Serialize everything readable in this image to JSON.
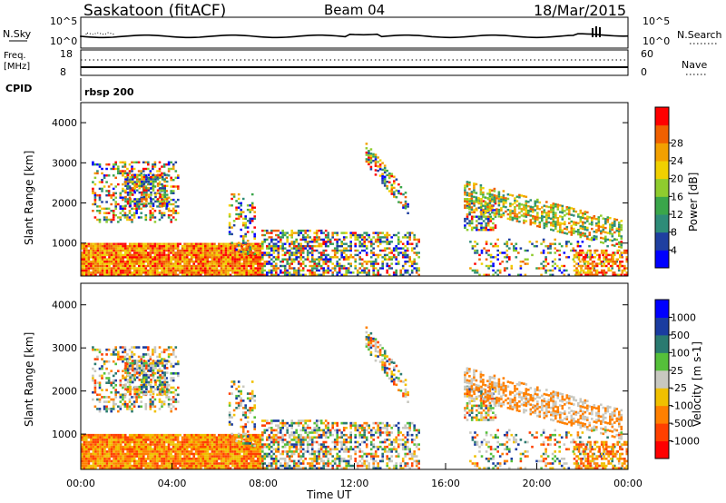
{
  "header": {
    "station": "Saskatoon (fitACF)",
    "beam": "Beam 04",
    "date": "18/Mar/2015"
  },
  "noise_panel": {
    "left_label": "N.Sky",
    "right_label": "N.Search",
    "left_ticks": [
      "10^5",
      "10^0"
    ],
    "right_ticks": [
      "10^5",
      "10^0"
    ],
    "legend_line": "dotted"
  },
  "freq_panel": {
    "left_label_line1": "Freq.",
    "left_label_line2": "[MHz]",
    "left_ticks": [
      "18",
      "8"
    ],
    "right_ticks": [
      "60",
      "0"
    ],
    "right_label": "Nave",
    "cpid_label": "CPID",
    "cpid_value": "rbsp 200"
  },
  "chart_data": [
    {
      "type": "heatmap",
      "name": "Power",
      "ylabel": "Slant Range [km]",
      "ylim": [
        180,
        4500
      ],
      "yticks": [
        "1000",
        "2000",
        "3000",
        "4000"
      ],
      "colorbar": {
        "label": "Power [dB]",
        "ticks": [
          "4",
          "8",
          "12",
          "16",
          "20",
          "24",
          "28"
        ],
        "colors": [
          "#0000ff",
          "#1f3fa0",
          "#2e8c78",
          "#3aa64a",
          "#8fcc2e",
          "#f0d000",
          "#f2a000",
          "#f06000",
          "#ff0000"
        ]
      }
    },
    {
      "type": "heatmap",
      "name": "Velocity",
      "ylabel": "Slant Range [km]",
      "xlabel": "Time UT",
      "ylim": [
        180,
        4500
      ],
      "yticks": [
        "1000",
        "2000",
        "3000",
        "4000"
      ],
      "xticks": [
        "00:00",
        "04:00",
        "08:00",
        "12:00",
        "16:00",
        "20:00",
        "00:00"
      ],
      "colorbar": {
        "label": "Velocity [m s-1]",
        "ticks": [
          "1000",
          "500",
          "100",
          "25",
          "-25",
          "-100",
          "-500",
          "-1000"
        ],
        "colors": [
          "#0000ff",
          "#1a3ca0",
          "#2a7a70",
          "#55c03a",
          "#c8c8c0",
          "#f0c000",
          "#ff8000",
          "#ff4000",
          "#ff0000"
        ]
      }
    }
  ]
}
